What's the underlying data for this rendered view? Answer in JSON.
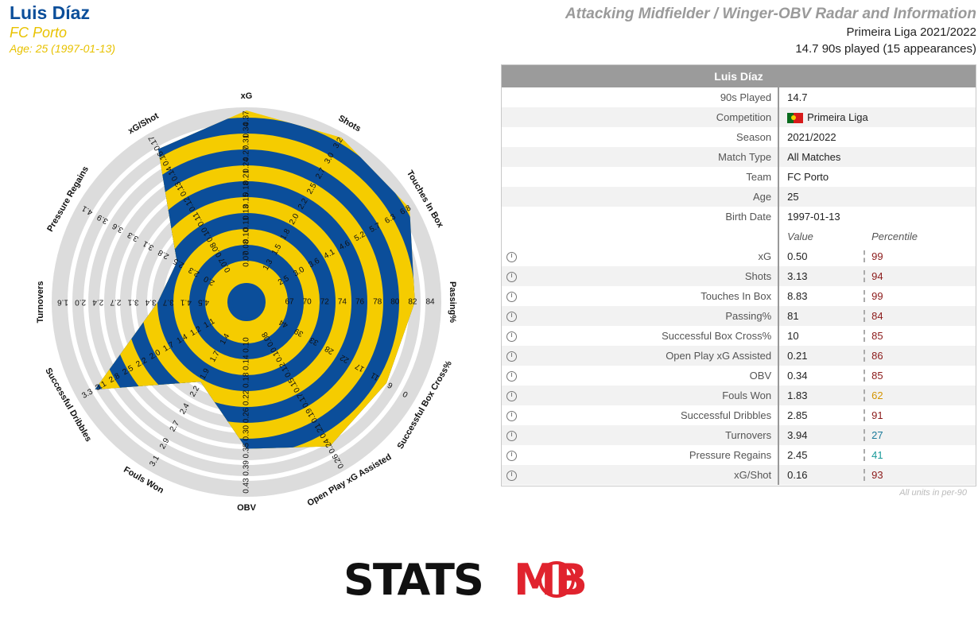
{
  "header": {
    "player": "Luis Díaz",
    "team": "FC Porto",
    "age_line": "Age: 25 (1997-01-13)",
    "title": "Attacking Midfielder / Winger-OBV Radar and Information",
    "competition_line": "Primeira Liga 2021/2022",
    "played_line": "14.7 90s played (15 appearances)"
  },
  "table": {
    "title": "Luis Díaz",
    "info": [
      {
        "label": "90s Played",
        "value": "14.7"
      },
      {
        "label": "Competition",
        "value": "Primeira Liga"
      },
      {
        "label": "Season",
        "value": "2021/2022"
      },
      {
        "label": "Match Type",
        "value": "All Matches"
      },
      {
        "label": "Team",
        "value": "FC Porto"
      },
      {
        "label": "Age",
        "value": "25"
      },
      {
        "label": "Birth Date",
        "value": "1997-01-13"
      }
    ],
    "value_header": "Value",
    "percentile_header": "Percentile",
    "metrics": [
      {
        "label": "xG",
        "value": "0.50",
        "percentile": "99",
        "color": "#8b1a1a"
      },
      {
        "label": "Shots",
        "value": "3.13",
        "percentile": "94",
        "color": "#8b1a1a"
      },
      {
        "label": "Touches In Box",
        "value": "8.83",
        "percentile": "99",
        "color": "#8b1a1a"
      },
      {
        "label": "Passing%",
        "value": "81",
        "percentile": "84",
        "color": "#8b1a1a"
      },
      {
        "label": "Successful Box Cross%",
        "value": "10",
        "percentile": "85",
        "color": "#8b1a1a"
      },
      {
        "label": "Open Play xG Assisted",
        "value": "0.21",
        "percentile": "86",
        "color": "#8b1a1a"
      },
      {
        "label": "OBV",
        "value": "0.34",
        "percentile": "85",
        "color": "#8b1a1a"
      },
      {
        "label": "Fouls Won",
        "value": "1.83",
        "percentile": "62",
        "color": "#d49400"
      },
      {
        "label": "Successful Dribbles",
        "value": "2.85",
        "percentile": "91",
        "color": "#8b1a1a"
      },
      {
        "label": "Turnovers",
        "value": "3.94",
        "percentile": "27",
        "color": "#1a7a9a"
      },
      {
        "label": "Pressure Regains",
        "value": "2.45",
        "percentile": "41",
        "color": "#1a9a9a"
      },
      {
        "label": "xG/Shot",
        "value": "0.16",
        "percentile": "93",
        "color": "#8b1a1a"
      }
    ],
    "footnote": "All units in per-90"
  },
  "chart_data": {
    "type": "radar",
    "fill_colors": [
      "#f5cc00",
      "#0b4e9a"
    ],
    "ring_color": "#dcdcdc",
    "axes": [
      {
        "label": "xG",
        "ticks": [
          "0.07",
          "0.08",
          "0.10",
          "0.11",
          "0.13",
          "0.15",
          "0.18",
          "0.21",
          "0.24",
          "0.27",
          "0.31",
          "0.34",
          "0.37"
        ],
        "value": 0.5
      },
      {
        "label": "Shots",
        "ticks": [
          "1.3",
          "1.5",
          "1.8",
          "2.0",
          "2.2",
          "2.5",
          "2.7",
          "3.0",
          "3.2"
        ],
        "value": 3.13
      },
      {
        "label": "Touches In Box",
        "ticks": [
          "2.5",
          "3.0",
          "3.6",
          "4.1",
          "4.6",
          "5.2",
          "5.7",
          "6.3",
          "6.8"
        ],
        "value": 8.83
      },
      {
        "label": "Passing%",
        "ticks": [
          "67",
          "70",
          "72",
          "74",
          "76",
          "78",
          "80",
          "82",
          "84"
        ],
        "value": 81
      },
      {
        "label": "Successful Box Cross%",
        "ticks": [
          "44",
          "39",
          "33",
          "28",
          "22",
          "17",
          "11",
          "6",
          "0"
        ],
        "value": 10
      },
      {
        "label": "Open Play xG Assisted",
        "ticks": [
          "0.08",
          "0.10",
          "0.12",
          "0.15",
          "0.17",
          "0.19",
          "0.21",
          "0.24",
          "0.26"
        ],
        "value": 0.21
      },
      {
        "label": "OBV",
        "ticks": [
          "0.10",
          "0.14",
          "0.18",
          "0.22",
          "0.26",
          "0.30",
          "0.35",
          "0.39",
          "0.43"
        ],
        "value": 0.34
      },
      {
        "label": "Fouls Won",
        "ticks": [
          "1.4",
          "1.7",
          "1.9",
          "2.2",
          "2.4",
          "2.7",
          "2.9",
          "3.1"
        ],
        "value": 1.83
      },
      {
        "label": "Successful Dribbles",
        "ticks": [
          "1.1",
          "1.2",
          "1.4",
          "1.7",
          "2.0",
          "2.2",
          "2.5",
          "2.8",
          "3.1",
          "3.3"
        ],
        "value": 2.85
      },
      {
        "label": "Turnovers",
        "ticks": [
          "4.5",
          "4.1",
          "3.7",
          "3.4",
          "3.1",
          "2.7",
          "2.4",
          "2.0",
          "1.6"
        ],
        "value": 3.94
      },
      {
        "label": "Pressure Regains",
        "ticks": [
          "2.0",
          "2.3",
          "2.5",
          "2.8",
          "3.1",
          "3.3",
          "3.6",
          "3.9",
          "4.1"
        ],
        "value": 2.45
      },
      {
        "label": "xG/Shot",
        "ticks": [
          "0.07",
          "0.08",
          "0.10",
          "0.11",
          "0.12",
          "0.13",
          "0.14",
          "0.16",
          "0.17"
        ],
        "value": 0.16
      }
    ],
    "player_reach": [
      1.0,
      0.99,
      0.98,
      0.86,
      0.82,
      0.85,
      0.73,
      0.4,
      0.9,
      0.38,
      0.33,
      0.91
    ]
  },
  "logo": {
    "part1": "STATS",
    "part2": "B",
    "part3": "MB"
  }
}
